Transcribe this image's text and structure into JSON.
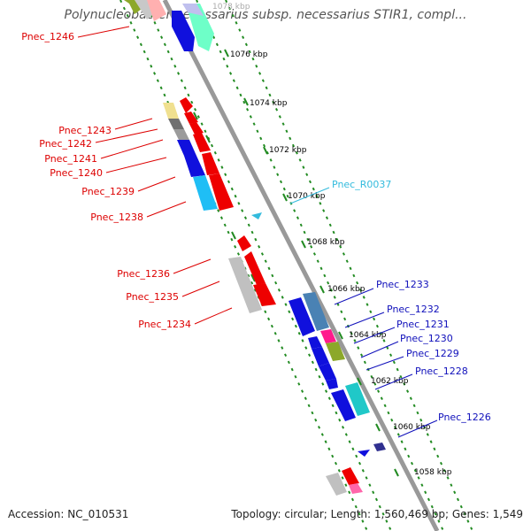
{
  "title": "Polynucleobacter necessarius subsp. necessarius STIR1, compl...",
  "footer": {
    "accession": "Accession: NC_010531",
    "summary": "Topology: circular; Length: 1,560,469 bp; Genes: 1,549"
  },
  "colors": {
    "backbone": "#999999",
    "track_border": "#228b22",
    "left_label": "#dd0000",
    "right_label": "#1010bb",
    "rna_label": "#33bbdd"
  },
  "ruler": [
    "1078 kbp",
    "1076 kbp",
    "1074 kbp",
    "1072 kbp",
    "1070 kbp",
    "1068 kbp",
    "1066 kbp",
    "1064 kbp",
    "1062 kbp",
    "1060 kbp",
    "1058 kbp"
  ],
  "left_labels": [
    "Pnec_1246",
    "Pnec_1243",
    "Pnec_1242",
    "Pnec_1241",
    "Pnec_1240",
    "Pnec_1239",
    "Pnec_1238",
    "Pnec_1236",
    "Pnec_1235",
    "Pnec_1234"
  ],
  "right_labels": [
    "Pnec_R0037",
    "Pnec_1233",
    "Pnec_1232",
    "Pnec_1231",
    "Pnec_1230",
    "Pnec_1229",
    "Pnec_1228",
    "Pnec_1226"
  ]
}
